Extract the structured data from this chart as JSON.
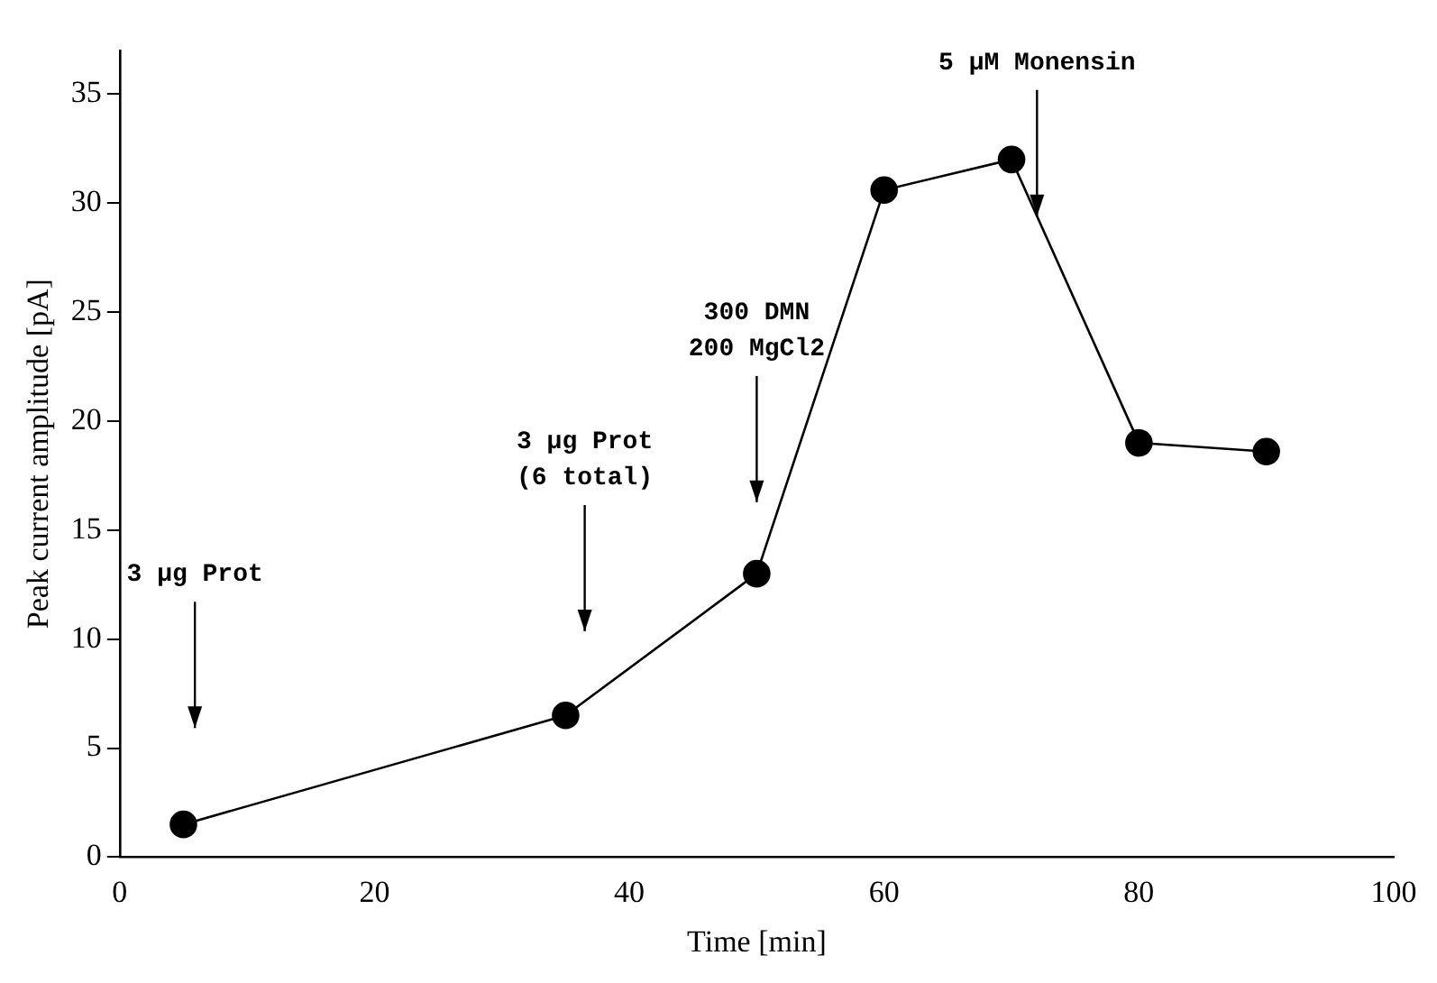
{
  "chart_data": {
    "type": "line",
    "xlabel": "Time [min]",
    "ylabel": "Peak current amplitude [pA]",
    "x": [
      5,
      35,
      50,
      60,
      70,
      80,
      90
    ],
    "series": [
      {
        "color": "#000000",
        "values": [
          1.5,
          6.5,
          13,
          30.6,
          32,
          19,
          18.6
        ]
      }
    ],
    "xlim": [
      0,
      100
    ],
    "xticks": [
      0,
      20,
      40,
      60,
      80,
      100
    ],
    "ylim": [
      0,
      37
    ],
    "yticks": [
      0,
      5,
      10,
      15,
      20,
      25,
      30,
      35
    ],
    "grid": false,
    "legend": false,
    "marker": "circle",
    "line_style": "solid",
    "annotations": [
      "3 μg Prot",
      "3 μg Prot\n(6 total)",
      "300 DMN\n200 MgCl2",
      {
        "text": "5 μM Monensin",
        "x": 72,
        "y": 29.4
      }
    ]
  }
}
